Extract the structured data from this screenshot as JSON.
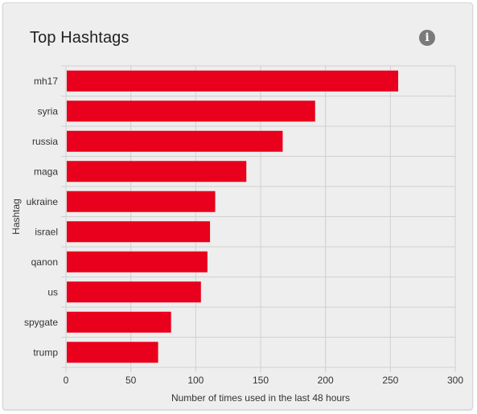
{
  "card": {
    "title": "Top Hashtags",
    "info_icon": "info-icon"
  },
  "chart_data": {
    "type": "bar",
    "orientation": "horizontal",
    "categories": [
      "mh17",
      "syria",
      "russia",
      "maga",
      "ukraine",
      "israel",
      "qanon",
      "us",
      "spygate",
      "trump"
    ],
    "values": [
      256,
      192,
      167,
      139,
      115,
      111,
      109,
      104,
      81,
      71
    ],
    "xlabel": "Number of times used in the last 48 hours",
    "ylabel": "Hashtag",
    "xlim": [
      0,
      300
    ],
    "xticks": [
      "0",
      "50",
      "100",
      "150",
      "200",
      "250",
      "300"
    ],
    "grid": true,
    "bar_color": "#e8001c"
  }
}
